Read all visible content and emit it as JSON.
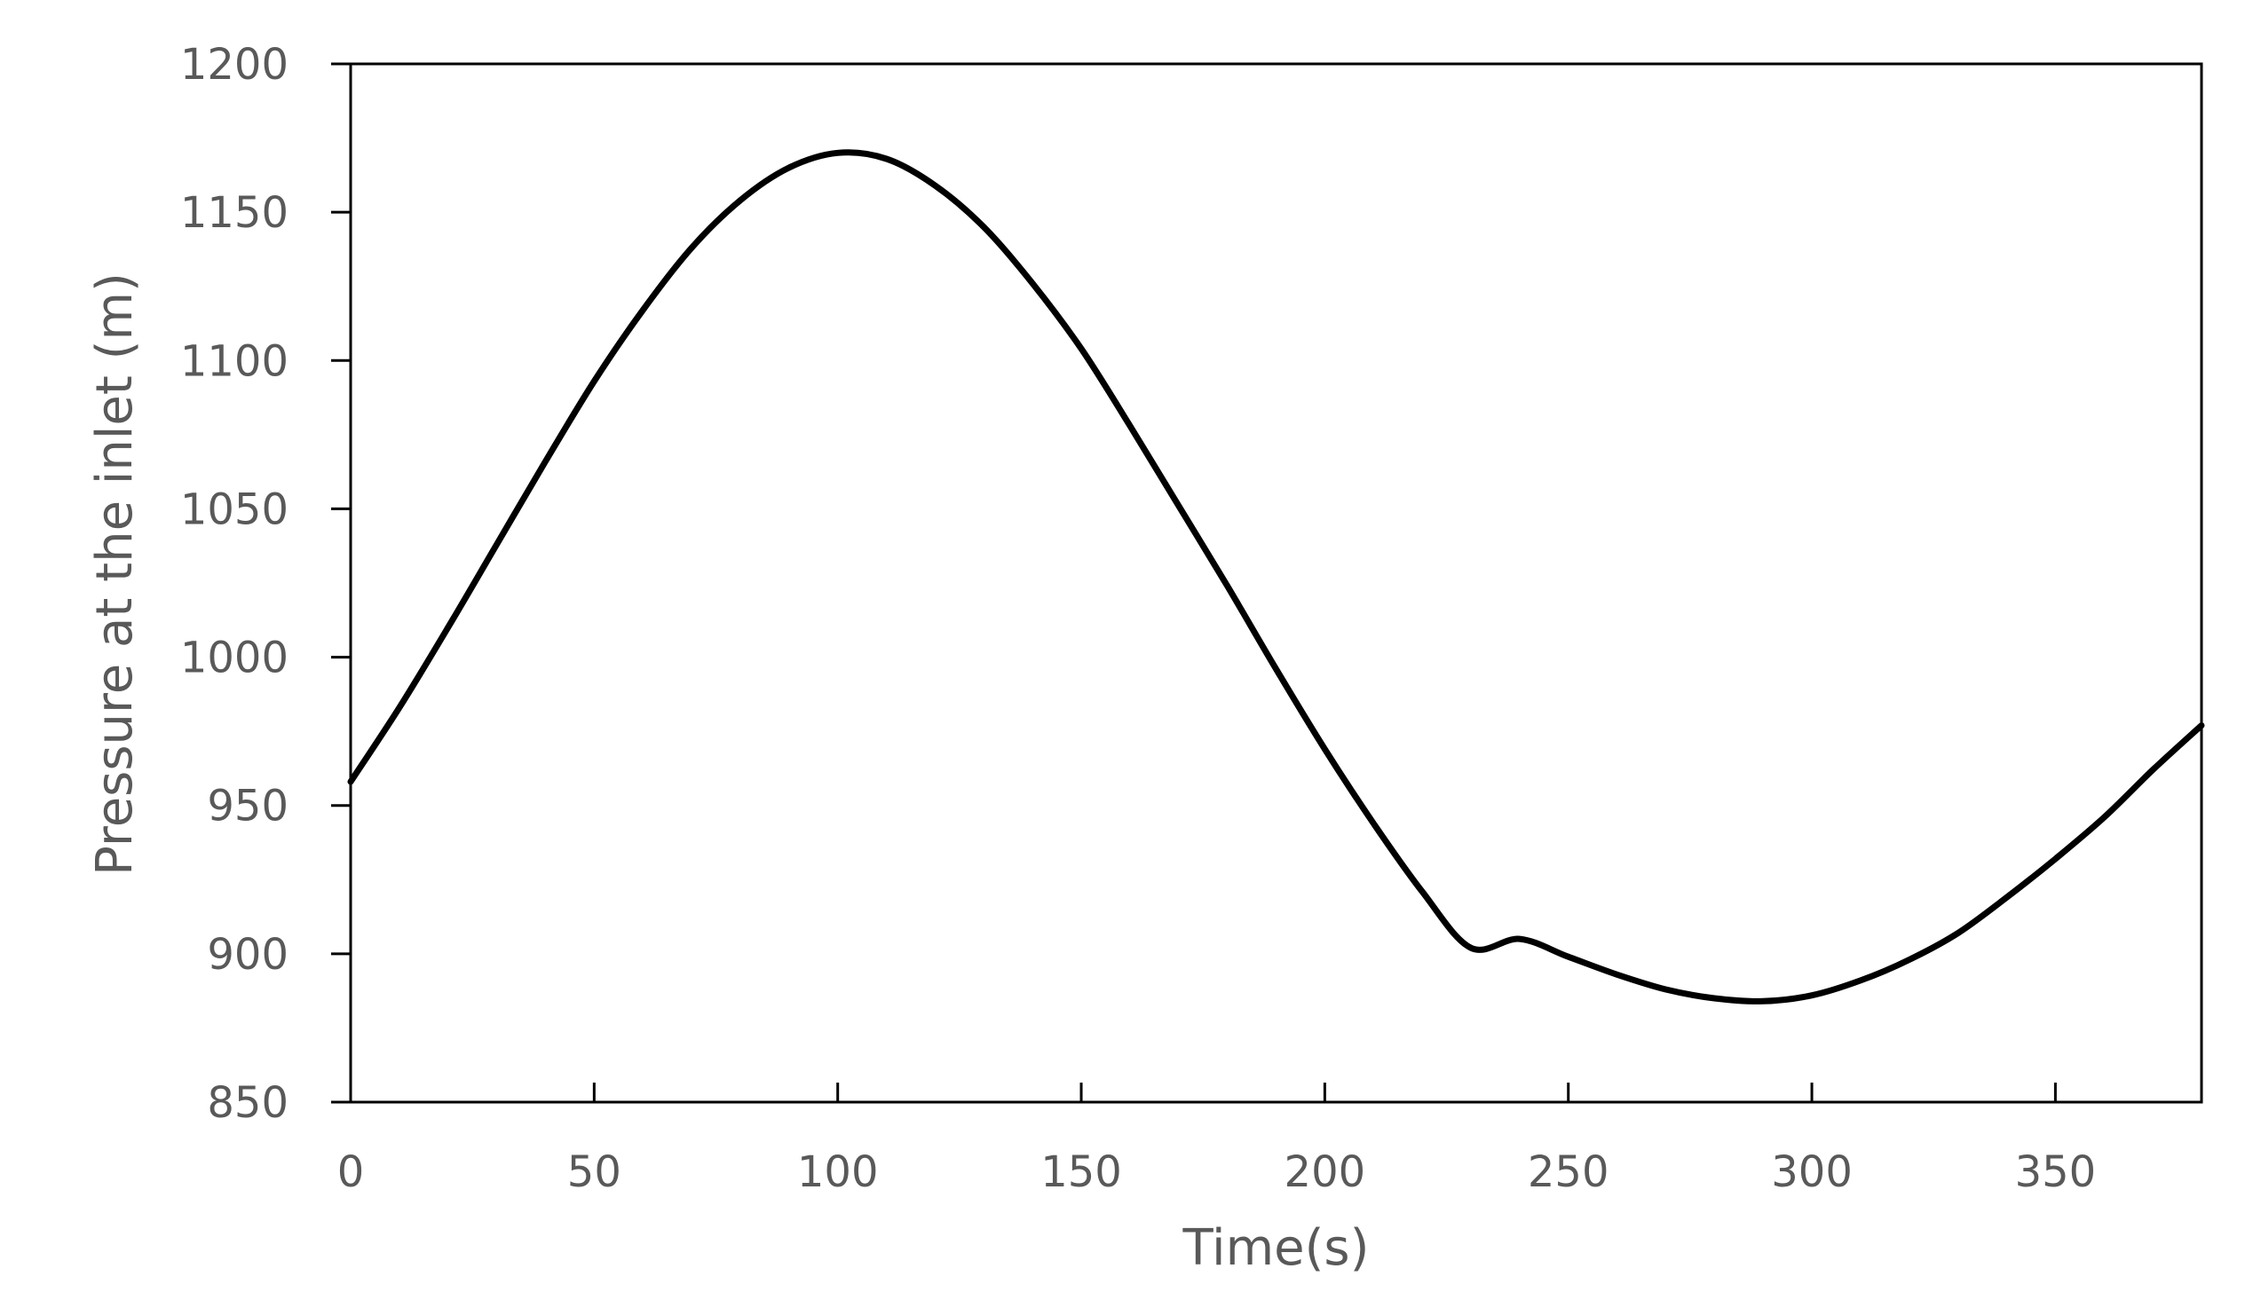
{
  "chart_data": {
    "type": "line",
    "xlabel": "Time(s)",
    "ylabel": "Pressure at the inlet  (m)",
    "xlim": [
      0,
      380
    ],
    "ylim": [
      850,
      1200
    ],
    "xticks": [
      0,
      50,
      100,
      150,
      200,
      250,
      300,
      350
    ],
    "yticks": [
      850,
      900,
      950,
      1000,
      1050,
      1100,
      1150,
      1200
    ],
    "grid": false,
    "legend": "none",
    "line_color": "#000000",
    "series": [
      {
        "x": [
          0,
          10,
          20,
          30,
          40,
          50,
          60,
          70,
          80,
          90,
          100,
          110,
          120,
          130,
          140,
          150,
          160,
          170,
          180,
          190,
          200,
          210,
          220,
          230,
          240,
          250,
          260,
          270,
          280,
          290,
          300,
          310,
          320,
          330,
          340,
          350,
          360,
          370,
          380
        ],
        "values": [
          958,
          983,
          1010,
          1038,
          1066,
          1093,
          1117,
          1138,
          1154,
          1165,
          1170,
          1168,
          1159,
          1145,
          1126,
          1104,
          1078,
          1051,
          1024,
          996,
          969,
          944,
          921,
          902,
          905,
          899,
          893,
          888,
          885,
          884,
          886,
          891,
          898,
          907,
          919,
          932,
          946,
          962,
          977
        ]
      }
    ]
  }
}
